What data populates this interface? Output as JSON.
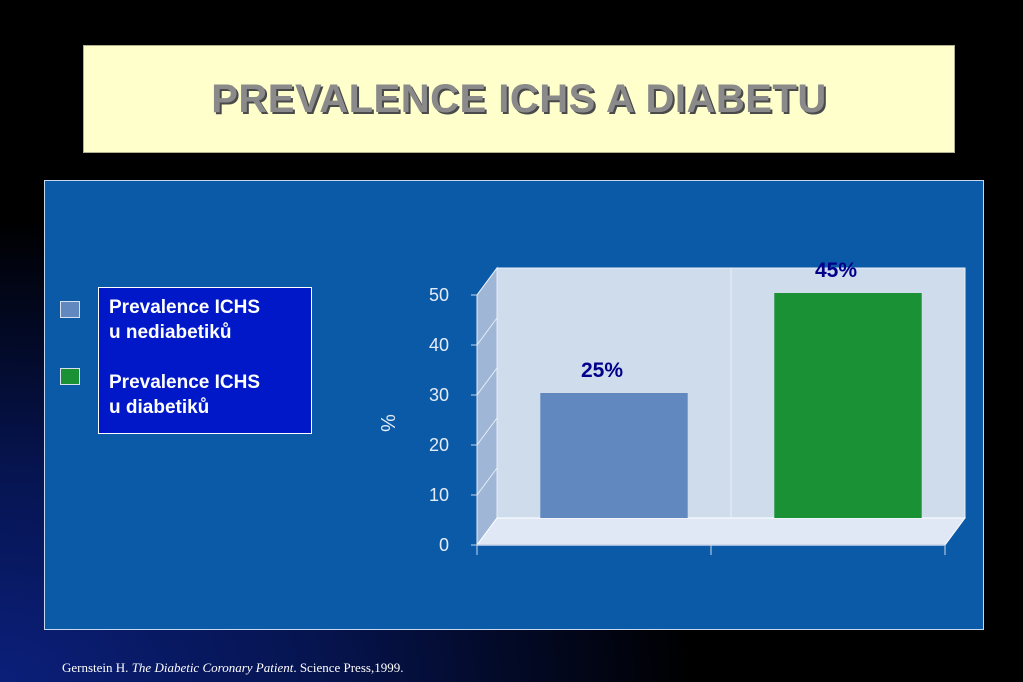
{
  "title": "PREVALENCE ICHS A DIABETU",
  "colors": {
    "background": "#000000",
    "title_box": "#ffffcc",
    "title_text": "#8a8a8a",
    "panel": "#0b5aa8",
    "legend_box": "#0018c8",
    "series_nondiabetic": "#6189c0",
    "series_diabetic": "#1b9135",
    "data_label": "#00008b"
  },
  "legend": {
    "items": [
      {
        "label": "Prevalence ICHS\nu nediabetiků",
        "color": "#6189c0"
      },
      {
        "label": "Prevalence ICHS\nu diabetiků",
        "color": "#1b9135"
      }
    ]
  },
  "chart_data": {
    "type": "bar",
    "title": "",
    "xlabel": "",
    "ylabel": "%",
    "ylim": [
      0,
      50
    ],
    "yticks": [
      0,
      10,
      20,
      30,
      40,
      50
    ],
    "grid": false,
    "three_d": true,
    "legend_position": "left",
    "categories": [
      "Prevalence ICHS u nediabetiků",
      "Prevalence ICHS u diabetiků"
    ],
    "values": [
      25,
      45
    ],
    "data_labels": [
      "25%",
      "45%"
    ],
    "bar_colors": [
      "#6189c0",
      "#1b9135"
    ]
  },
  "footer": {
    "author": "Gernstein H. ",
    "book": "The Diabetic Coronary Patient",
    "rest": ". Science Press,1999."
  }
}
